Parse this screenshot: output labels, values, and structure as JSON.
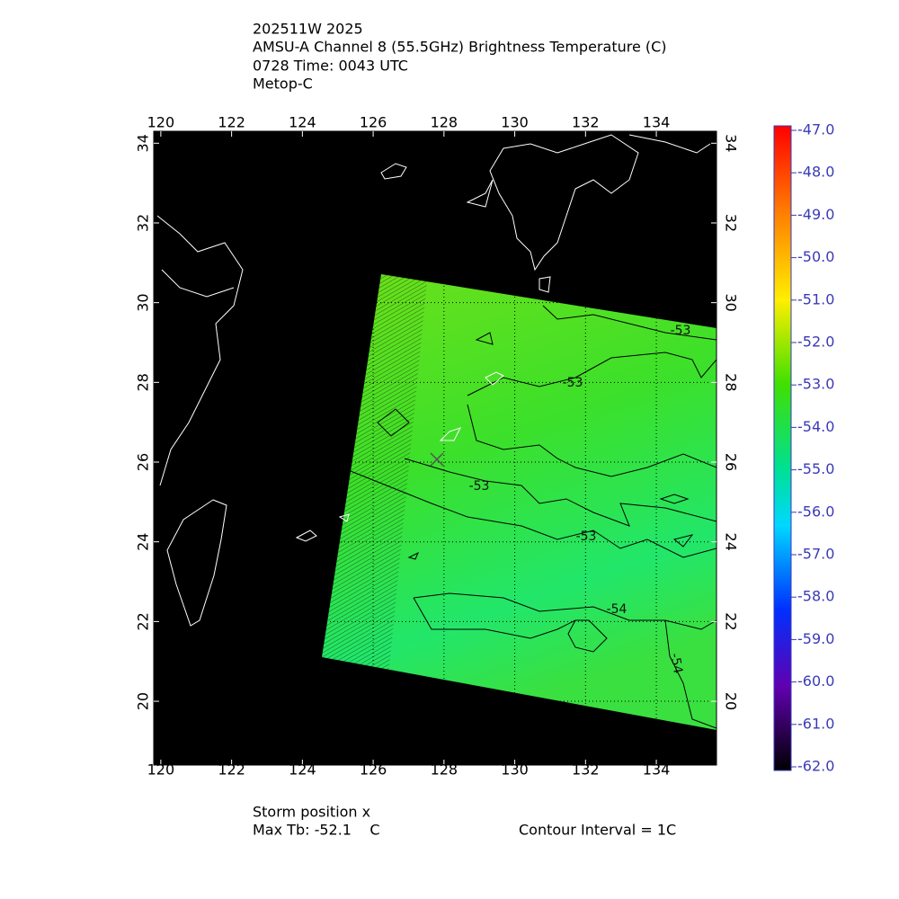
{
  "header": {
    "lines": [
      "202511W 2025",
      "AMSU-A Channel 8 (55.5GHz) Brightness Temperature (C)",
      "0728 Time: 0043 UTC",
      "Metop-C"
    ]
  },
  "map": {
    "lon_range": [
      119.8,
      135.7
    ],
    "lat_range": [
      18.4,
      34.3
    ],
    "lon_ticks": [
      120,
      122,
      124,
      126,
      128,
      130,
      132,
      134
    ],
    "lat_ticks": [
      20,
      22,
      24,
      26,
      28,
      30,
      32,
      34
    ],
    "contour_labels": [
      "-53",
      "-53",
      "-53",
      "-53",
      "-54",
      "-54"
    ]
  },
  "colorbar": {
    "labels": [
      "-47.0",
      "-48.0",
      "-49.0",
      "-50.0",
      "-51.0",
      "-52.0",
      "-53.0",
      "-54.0",
      "-55.0",
      "-56.0",
      "-57.0",
      "-58.0",
      "-59.0",
      "-60.0",
      "-61.0",
      "-62.0"
    ]
  },
  "footer": {
    "storm": "Storm position x",
    "max_tb": "Max Tb: -52.1    C",
    "contour": "Contour Interval = 1C"
  }
}
